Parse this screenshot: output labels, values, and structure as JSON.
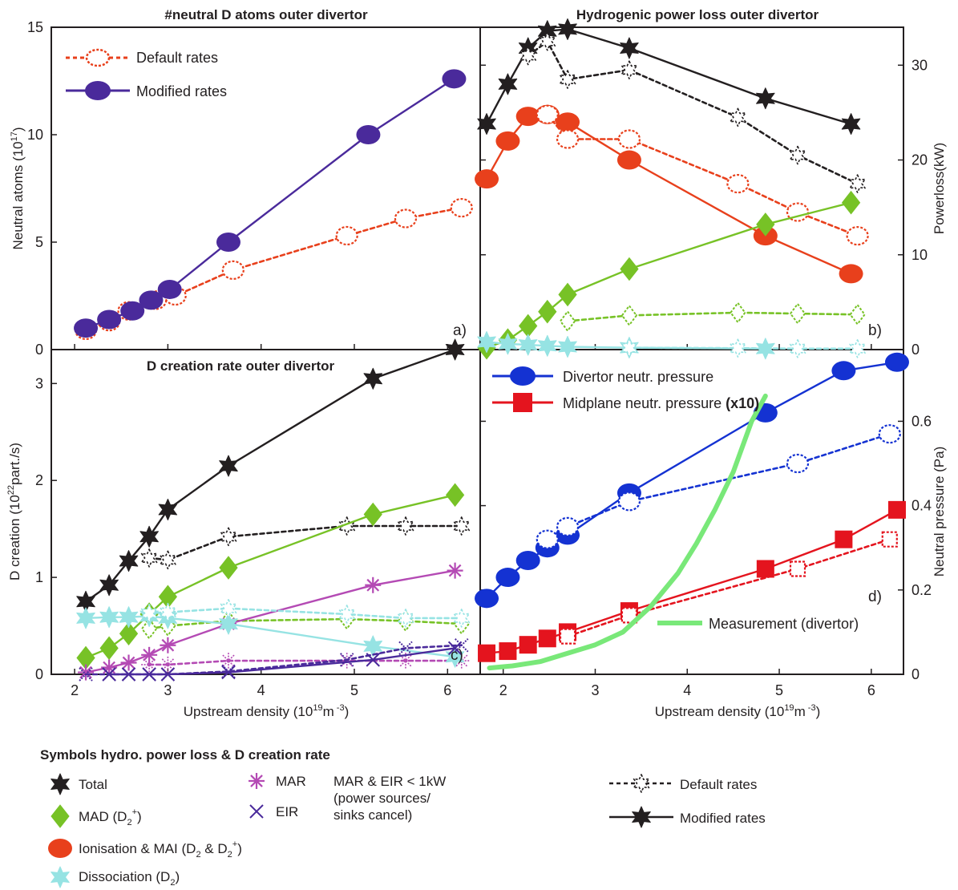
{
  "chart_data": [
    {
      "panel": "a",
      "type": "line",
      "title": "#neutral D atoms outer divertor",
      "xlabel": "",
      "ylabel": "Neutral atoms (10",
      "ylabel_sup": "17",
      "ylabel_end": ")",
      "ylim": [
        0,
        15
      ],
      "xlim": [
        1.75,
        6.35
      ],
      "yticks": [
        "0",
        "5",
        "10",
        "15"
      ],
      "tag": "a)",
      "legend": {
        "placement": "top-left",
        "items": [
          {
            "label": "Default rates",
            "style": "dashed",
            "color": "#e8401c",
            "marker": "ellipse-open"
          },
          {
            "label": "Modified rates",
            "style": "solid",
            "color": "#4a2a9b",
            "marker": "ellipse"
          }
        ]
      },
      "series": [
        {
          "name": "Default rates",
          "color": "#e8401c",
          "dash": true,
          "marker": "ellipse-open",
          "x": [
            2.12,
            2.37,
            2.58,
            2.87,
            3.08,
            3.7,
            4.92,
            5.55,
            6.15
          ],
          "y": [
            0.9,
            1.3,
            1.8,
            2.3,
            2.5,
            3.7,
            5.3,
            6.1,
            6.6
          ]
        },
        {
          "name": "Modified rates",
          "color": "#4a2a9b",
          "dash": false,
          "marker": "ellipse",
          "x": [
            2.12,
            2.37,
            2.62,
            2.82,
            3.02,
            3.65,
            5.15,
            6.07
          ],
          "y": [
            1.0,
            1.4,
            1.8,
            2.3,
            2.8,
            5.0,
            10.0,
            12.6
          ]
        }
      ]
    },
    {
      "panel": "b",
      "type": "line",
      "title": "Hydrogenic power loss outer divertor",
      "xlabel": "",
      "ylabel": "Powerloss(kW)",
      "ylim": [
        0,
        34
      ],
      "xlim": [
        1.75,
        6.35
      ],
      "yticks": [
        "0",
        "10",
        "20",
        "30"
      ],
      "tag": "b)",
      "series": [
        {
          "color": "#231f20",
          "dash": false,
          "marker": "star",
          "x": [
            1.82,
            2.05,
            2.27,
            2.48,
            2.7,
            3.37,
            4.85,
            5.78
          ],
          "y": [
            23.8,
            28.0,
            31.8,
            33.6,
            33.8,
            31.8,
            26.5,
            23.8
          ]
        },
        {
          "color": "#231f20",
          "dash": true,
          "marker": "star-open",
          "x": [
            2.27,
            2.48,
            2.7,
            3.37,
            4.55,
            5.2,
            5.85
          ],
          "y": [
            31.0,
            32.5,
            28.5,
            29.5,
            24.5,
            20.5,
            17.5
          ]
        },
        {
          "color": "#e8401c",
          "dash": false,
          "marker": "ellipse",
          "x": [
            1.82,
            2.05,
            2.27,
            2.48,
            2.7,
            3.37,
            4.85,
            5.78
          ],
          "y": [
            18.0,
            22.0,
            24.6,
            24.8,
            24.0,
            20.0,
            12.0,
            8.0
          ]
        },
        {
          "color": "#e8401c",
          "dash": true,
          "marker": "ellipse-open",
          "x": [
            2.48,
            2.7,
            3.37,
            4.55,
            5.2,
            5.85
          ],
          "y": [
            24.8,
            22.2,
            22.2,
            17.5,
            14.5,
            12.0
          ]
        },
        {
          "color": "#77c226",
          "dash": false,
          "marker": "diamond",
          "x": [
            1.82,
            2.05,
            2.27,
            2.48,
            2.7,
            3.37,
            4.85,
            5.78
          ],
          "y": [
            0.2,
            1.0,
            2.5,
            4.0,
            5.8,
            8.5,
            13.2,
            15.5
          ]
        },
        {
          "color": "#77c226",
          "dash": true,
          "marker": "diamond-open",
          "x": [
            2.7,
            3.37,
            4.55,
            5.2,
            5.85
          ],
          "y": [
            3.0,
            3.6,
            3.9,
            3.8,
            3.7
          ]
        },
        {
          "color": "#96e3e3",
          "dash": false,
          "marker": "star",
          "x": [
            1.82,
            2.05,
            2.27,
            2.48,
            2.7,
            3.37,
            4.85
          ],
          "y": [
            0.8,
            0.6,
            0.5,
            0.4,
            0.3,
            0.2,
            0.1
          ]
        },
        {
          "color": "#96e3e3",
          "dash": true,
          "marker": "star-open",
          "x": [
            3.37,
            4.55,
            5.2,
            5.85
          ],
          "y": [
            0.2,
            0.15,
            0.1,
            0.1
          ]
        }
      ]
    },
    {
      "panel": "c",
      "type": "line",
      "title": "D creation  rate outer divertor",
      "xlabel": "Upstream density (10",
      "xlabel_sup": "19",
      "xlabel_end": "m",
      "xlabel_sup2": " -3",
      "xlabel_close": ")",
      "ylabel": "D creation (10",
      "ylabel_sup": "22",
      "ylabel_end": "part./s)",
      "ylim": [
        0,
        3.35
      ],
      "xlim": [
        1.75,
        6.35
      ],
      "xticks": [
        "2",
        "3",
        "4",
        "5",
        "6"
      ],
      "yticks": [
        "0",
        "1",
        "2",
        "3"
      ],
      "tag": "c)",
      "series": [
        {
          "color": "#231f20",
          "dash": false,
          "marker": "star",
          "x": [
            2.12,
            2.37,
            2.58,
            2.8,
            3.0,
            3.65,
            5.2,
            6.08
          ],
          "y": [
            0.75,
            0.92,
            1.17,
            1.42,
            1.7,
            2.15,
            3.05,
            3.35
          ]
        },
        {
          "color": "#231f20",
          "dash": true,
          "marker": "star-open",
          "x": [
            2.8,
            3.0,
            3.65,
            4.92,
            5.55,
            6.15
          ],
          "y": [
            1.2,
            1.18,
            1.42,
            1.53,
            1.53,
            1.53
          ]
        },
        {
          "color": "#77c226",
          "dash": false,
          "marker": "diamond",
          "x": [
            2.12,
            2.37,
            2.58,
            2.8,
            3.0,
            3.65,
            5.2,
            6.08
          ],
          "y": [
            0.17,
            0.27,
            0.42,
            0.62,
            0.8,
            1.1,
            1.65,
            1.85
          ]
        },
        {
          "color": "#77c226",
          "dash": true,
          "marker": "diamond-open",
          "x": [
            2.8,
            3.0,
            3.65,
            4.92,
            5.55,
            6.15
          ],
          "y": [
            0.47,
            0.5,
            0.55,
            0.57,
            0.55,
            0.52
          ]
        },
        {
          "color": "#b44ab4",
          "dash": false,
          "marker": "asterisk",
          "x": [
            2.12,
            2.37,
            2.58,
            2.8,
            3.0,
            3.65,
            5.2,
            6.08
          ],
          "y": [
            0.02,
            0.07,
            0.12,
            0.2,
            0.3,
            0.52,
            0.92,
            1.07
          ]
        },
        {
          "color": "#b44ab4",
          "dash": true,
          "marker": "asterisk-open",
          "x": [
            2.8,
            3.0,
            3.65,
            4.92,
            5.55,
            6.15
          ],
          "y": [
            0.1,
            0.1,
            0.14,
            0.14,
            0.14,
            0.14
          ]
        },
        {
          "color": "#96e3e3",
          "dash": false,
          "marker": "star",
          "x": [
            2.12,
            2.37,
            2.58,
            2.8,
            3.0,
            3.65,
            5.2,
            6.08
          ],
          "y": [
            0.58,
            0.59,
            0.59,
            0.6,
            0.58,
            0.52,
            0.29,
            0.18
          ]
        },
        {
          "color": "#96e3e3",
          "dash": true,
          "marker": "star-open",
          "x": [
            2.8,
            3.0,
            3.65,
            4.92,
            5.55,
            6.15
          ],
          "y": [
            0.63,
            0.64,
            0.68,
            0.62,
            0.58,
            0.58
          ]
        },
        {
          "color": "#4a2a9b",
          "dash": false,
          "marker": "x",
          "x": [
            2.37,
            2.58,
            2.8,
            3.0,
            3.65,
            5.2,
            6.08
          ],
          "y": [
            0.0,
            0.0,
            0.0,
            0.0,
            0.02,
            0.15,
            0.27
          ]
        },
        {
          "color": "#4a2a9b",
          "dash": true,
          "marker": "x-open",
          "x": [
            2.12,
            2.37,
            2.58,
            2.8,
            3.0,
            3.65,
            4.92,
            5.55,
            6.15
          ],
          "y": [
            0.0,
            0.0,
            0.0,
            0.0,
            0.0,
            0.03,
            0.15,
            0.27,
            0.3
          ]
        }
      ]
    },
    {
      "panel": "d",
      "type": "line",
      "title": "",
      "xlabel": "Upstream density (10",
      "xlabel_sup": "19",
      "xlabel_end": "m",
      "xlabel_sup2": " -3",
      "xlabel_close": ")",
      "ylabel": "Neutral pressure (Pa)",
      "ylim": [
        0,
        0.77
      ],
      "xlim": [
        1.75,
        6.35
      ],
      "xticks": [
        "2",
        "3",
        "4",
        "5",
        "6"
      ],
      "yticks": [
        "0",
        "0.2",
        "0.4",
        "0.6"
      ],
      "tag": "d)",
      "legend": {
        "placement": "top-left",
        "items": [
          {
            "label": "Divertor neutr. pressure",
            "label_bold": "",
            "color": "#1432d2",
            "marker": "ellipse"
          },
          {
            "label": "Midplane neutr. pressure ",
            "label_bold": "(x10)",
            "color": "#e4141e",
            "marker": "square"
          }
        ]
      },
      "measurement_label": "Measurement (divertor)",
      "series": [
        {
          "name": "Divertor neutr. pressure",
          "color": "#1432d2",
          "dash": false,
          "marker": "ellipse",
          "x": [
            1.82,
            2.05,
            2.27,
            2.48,
            2.7,
            3.37,
            4.85,
            5.7,
            6.28
          ],
          "y": [
            0.18,
            0.23,
            0.27,
            0.3,
            0.33,
            0.43,
            0.62,
            0.72,
            0.74
          ]
        },
        {
          "color": "#1432d2",
          "dash": true,
          "marker": "ellipse-open",
          "x": [
            2.48,
            2.7,
            3.37,
            5.2,
            6.2
          ],
          "y": [
            0.32,
            0.35,
            0.41,
            0.5,
            0.57
          ]
        },
        {
          "name": "Midplane neutr. pressure",
          "color": "#e4141e",
          "dash": false,
          "marker": "square",
          "x": [
            1.82,
            2.05,
            2.27,
            2.48,
            2.7,
            3.37,
            4.85,
            5.7,
            6.28
          ],
          "y": [
            0.05,
            0.055,
            0.07,
            0.085,
            0.1,
            0.15,
            0.25,
            0.32,
            0.39
          ]
        },
        {
          "color": "#e4141e",
          "dash": true,
          "marker": "square-open",
          "x": [
            2.7,
            3.37,
            5.2,
            6.2
          ],
          "y": [
            0.09,
            0.14,
            0.25,
            0.32
          ]
        },
        {
          "name": "Measurement (divertor)",
          "color": "#79e879",
          "dash": false,
          "marker": "none",
          "x": [
            1.85,
            2.1,
            2.4,
            2.7,
            3.0,
            3.3,
            3.6,
            3.9,
            4.1,
            4.3,
            4.5,
            4.7,
            4.85
          ],
          "y": [
            0.015,
            0.02,
            0.03,
            0.05,
            0.07,
            0.1,
            0.16,
            0.24,
            0.31,
            0.39,
            0.48,
            0.6,
            0.66
          ]
        }
      ]
    }
  ],
  "legend_bottom": {
    "title": "Symbols hydro. power loss & D creation rate",
    "total": "Total",
    "mad": "MAD (D",
    "mad_sup": "+",
    "mad_close": ")",
    "ion": "Ionisation & MAI (D",
    "ion_mid": " & D",
    "ion_sup": "+",
    "ion_close": ")",
    "dis": "Dissociation (D",
    "dis_close": ")",
    "sub2": "2",
    "mar": "MAR",
    "eir": "EIR",
    "note1": "MAR & EIR < 1kW",
    "note2": "(power sources/",
    "note3": "sinks cancel)",
    "default": "Default rates",
    "modified": "Modified rates",
    "colors": {
      "total": "#231f20",
      "mad": "#77c226",
      "ion": "#e8401c",
      "dis": "#96e3e3",
      "mar": "#b44ab4",
      "eir": "#4a2a9b"
    }
  }
}
